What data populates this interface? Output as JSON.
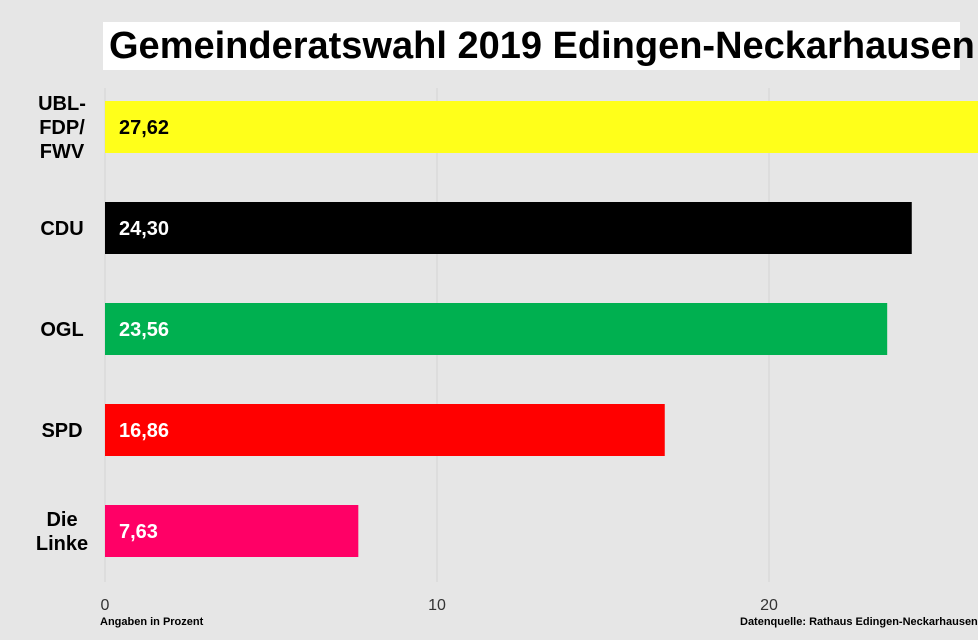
{
  "chart_data": {
    "type": "bar",
    "orientation": "horizontal",
    "title": "Gemeinderatswahl 2019 Edingen-Neckarhausen",
    "categories": [
      [
        "UBL-",
        "FDP/",
        "FWV"
      ],
      [
        "CDU"
      ],
      [
        "OGL"
      ],
      [
        "SPD"
      ],
      [
        "Die",
        "Linke"
      ]
    ],
    "values": [
      27.62,
      24.3,
      23.56,
      16.86,
      7.63
    ],
    "value_labels": [
      "27,62",
      "24,30",
      "23,56",
      "16,86",
      "7,63"
    ],
    "colors": [
      "#ffff1a",
      "#000000",
      "#00b050",
      "#ff0000",
      "#ff0066"
    ],
    "value_label_colors": [
      "#000000",
      "#ffffff",
      "#ffffff",
      "#ffffff",
      "#ffffff"
    ],
    "xlim": [
      0,
      25.8
    ],
    "x_ticks": [
      0,
      10,
      20
    ],
    "x_tick_labels": [
      "0",
      "10",
      "20"
    ],
    "grid": true,
    "unit_note": "Angaben in Prozent",
    "source_note": "Datenquelle: Rathaus Edingen-Neckarhausen"
  }
}
